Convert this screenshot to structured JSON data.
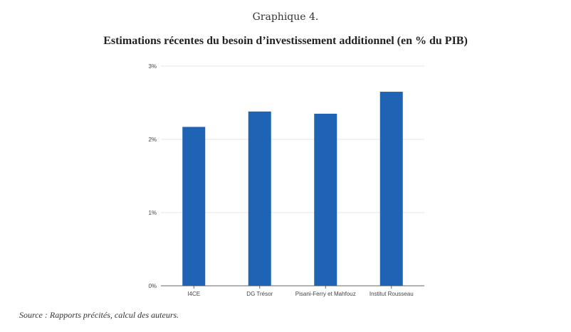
{
  "figure_label": "Graphique 4.",
  "source_note": "Source : Rapports précités, calcul des auteurs.",
  "chart_data": {
    "type": "bar",
    "title": "Estimations récentes du besoin d’investissement additionnel (en % du PIB)",
    "xlabel": "",
    "ylabel": "",
    "categories": [
      "I4CE",
      "DG Trésor",
      "Pisani-Ferry et Mahfouz",
      "Institut Rousseau"
    ],
    "values": [
      2.17,
      2.38,
      2.35,
      2.65
    ],
    "ylim": [
      0,
      3
    ],
    "yticks": [
      0,
      1,
      2,
      3
    ],
    "ytick_labels": [
      "0%",
      "1%",
      "2%",
      "3%"
    ],
    "grid": true,
    "legend": "none",
    "bar_color": "#1f64b4",
    "grid_color": "#e6e6e6",
    "axis_color": "#666666"
  }
}
